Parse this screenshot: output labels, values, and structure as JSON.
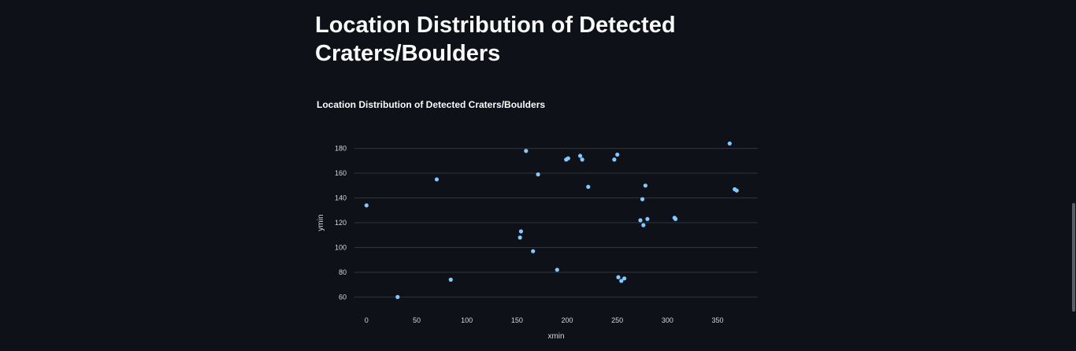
{
  "page": {
    "title": "Location Distribution of Detected Craters/Boulders"
  },
  "chart_data": {
    "type": "scatter",
    "title": "Location Distribution of Detected Craters/Boulders",
    "xlabel": "xmin",
    "ylabel": "ymin",
    "xlim": [
      -12,
      390
    ],
    "ylim": [
      52,
      188
    ],
    "xticks": [
      0,
      50,
      100,
      150,
      200,
      250,
      300,
      350
    ],
    "yticks": [
      60,
      80,
      100,
      120,
      140,
      160,
      180
    ],
    "grid": "horizontal",
    "point_color": "#83c9ff",
    "points": [
      {
        "x": 0,
        "y": 134
      },
      {
        "x": 31,
        "y": 60
      },
      {
        "x": 70,
        "y": 155
      },
      {
        "x": 84,
        "y": 74
      },
      {
        "x": 153,
        "y": 108
      },
      {
        "x": 154,
        "y": 113
      },
      {
        "x": 159,
        "y": 178
      },
      {
        "x": 166,
        "y": 97
      },
      {
        "x": 171,
        "y": 159
      },
      {
        "x": 190,
        "y": 82
      },
      {
        "x": 199,
        "y": 171
      },
      {
        "x": 201,
        "y": 172
      },
      {
        "x": 213,
        "y": 174
      },
      {
        "x": 215,
        "y": 171
      },
      {
        "x": 221,
        "y": 149
      },
      {
        "x": 247,
        "y": 171
      },
      {
        "x": 250,
        "y": 175
      },
      {
        "x": 251,
        "y": 76
      },
      {
        "x": 254,
        "y": 73
      },
      {
        "x": 257,
        "y": 75
      },
      {
        "x": 273,
        "y": 122
      },
      {
        "x": 275,
        "y": 139
      },
      {
        "x": 276,
        "y": 118
      },
      {
        "x": 278,
        "y": 150
      },
      {
        "x": 280,
        "y": 123
      },
      {
        "x": 307,
        "y": 124
      },
      {
        "x": 308,
        "y": 123
      },
      {
        "x": 362,
        "y": 184
      },
      {
        "x": 367,
        "y": 147
      },
      {
        "x": 369,
        "y": 146
      }
    ]
  }
}
